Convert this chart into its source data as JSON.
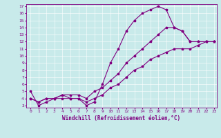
{
  "xlabel": "Windchill (Refroidissement éolien,°C)",
  "ylabel": "",
  "bg_color": "#c8eaea",
  "line_color": "#800080",
  "grid_color": "#ffffff",
  "x_min": 0,
  "x_max": 23,
  "y_min": 3,
  "y_max": 17,
  "line1_x": [
    0,
    1,
    2,
    3,
    4,
    5,
    6,
    7,
    8,
    9,
    10,
    11,
    12,
    13,
    14,
    15,
    16,
    17,
    18,
    19,
    20,
    21,
    22,
    23
  ],
  "line1_y": [
    5.0,
    3.0,
    3.5,
    4.0,
    4.5,
    4.0,
    4.0,
    3.0,
    3.5,
    6.0,
    9.0,
    11.0,
    13.5,
    15.0,
    16.0,
    16.5,
    17.0,
    16.5,
    14.0,
    13.5,
    12.0,
    12.0,
    12.0,
    12.0
  ],
  "line2_x": [
    0,
    1,
    2,
    3,
    4,
    5,
    6,
    7,
    8,
    9,
    10,
    11,
    12,
    13,
    14,
    15,
    16,
    17,
    18,
    19,
    20,
    21,
    22,
    23
  ],
  "line2_y": [
    4.0,
    3.5,
    4.0,
    4.0,
    4.5,
    4.5,
    4.5,
    4.0,
    5.0,
    5.5,
    6.5,
    7.5,
    9.0,
    10.0,
    11.0,
    12.0,
    13.0,
    14.0,
    14.0,
    13.5,
    12.0,
    12.0,
    12.0,
    12.0
  ],
  "line3_x": [
    0,
    1,
    2,
    3,
    4,
    5,
    6,
    7,
    8,
    9,
    10,
    11,
    12,
    13,
    14,
    15,
    16,
    17,
    18,
    19,
    20,
    21,
    22,
    23
  ],
  "line3_y": [
    4.0,
    3.5,
    4.0,
    4.0,
    4.0,
    4.0,
    4.0,
    3.5,
    4.0,
    4.5,
    5.5,
    6.0,
    7.0,
    8.0,
    8.5,
    9.5,
    10.0,
    10.5,
    11.0,
    11.0,
    11.0,
    11.5,
    12.0,
    12.0
  ],
  "marker": "*",
  "marker_size": 2.5,
  "line_width": 0.8,
  "tick_fontsize": 4.5,
  "label_fontsize": 5.5
}
